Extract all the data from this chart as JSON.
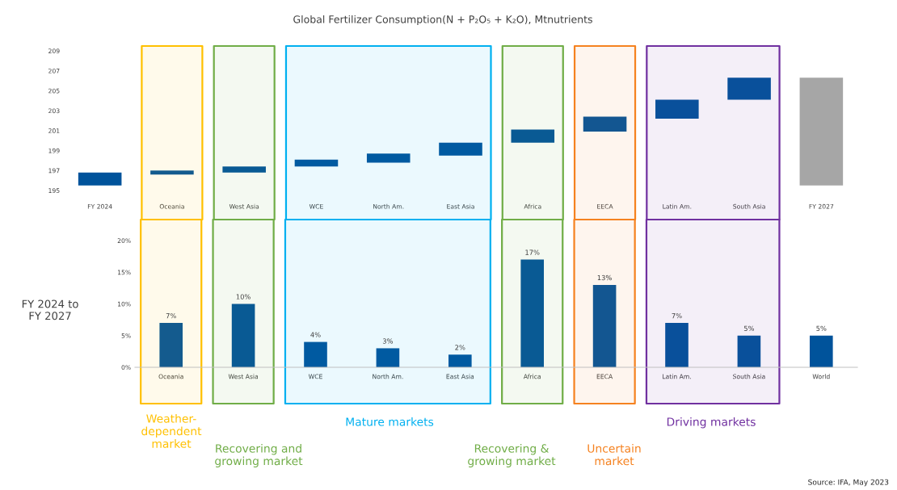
{
  "chart_data": [
    {
      "type": "bar",
      "title": "Global Fertilizer Consumption(N + P₂O₅ + K₂O), Mtnutrients",
      "categories": [
        "FY 2024",
        "Oceania",
        "West Asia",
        "WCE",
        "North Am.",
        "East Asia",
        "Africa",
        "EECA",
        "Latin Am.",
        "South Asia",
        "FY 2027"
      ],
      "base": [
        195.5,
        196.6,
        196.8,
        197.4,
        197.8,
        198.5,
        199.8,
        200.9,
        202.2,
        204.1,
        195.5
      ],
      "values": [
        1.3,
        0.4,
        0.6,
        0.7,
        0.9,
        1.3,
        1.3,
        1.5,
        1.9,
        2.2,
        10.8
      ],
      "colors": [
        "#00539b",
        "#00539b",
        "#00539b",
        "#00539b",
        "#00539b",
        "#00539b",
        "#00539b",
        "#00539b",
        "#00539b",
        "#00539b",
        "#a6a6a6"
      ],
      "ylim": [
        195,
        209
      ],
      "yticks": [
        195,
        197,
        199,
        201,
        203,
        205,
        207,
        209
      ],
      "grid": false,
      "legend": false,
      "bands": [
        {
          "axis": "x",
          "from": "Oceania",
          "to": "Oceania",
          "color": "#ffc000"
        },
        {
          "axis": "x",
          "from": "West Asia",
          "to": "West Asia",
          "color": "#70ad47"
        },
        {
          "axis": "x",
          "from": "WCE",
          "to": "East Asia",
          "color": "#00b0f0"
        },
        {
          "axis": "x",
          "from": "Africa",
          "to": "Africa",
          "color": "#70ad47"
        },
        {
          "axis": "x",
          "from": "EECA",
          "to": "EECA",
          "color": "#f58220"
        },
        {
          "axis": "x",
          "from": "Latin Am.",
          "to": "South Asia",
          "color": "#7030a0"
        }
      ]
    },
    {
      "type": "bar",
      "ylabel": "FY 2024 to\nFY 2027",
      "categories": [
        "Oceania",
        "West Asia",
        "WCE",
        "North Am.",
        "East Asia",
        "Africa",
        "EECA",
        "Latin Am.",
        "South Asia",
        "World"
      ],
      "values": [
        7,
        10,
        4,
        3,
        2,
        17,
        13,
        7,
        5,
        5
      ],
      "value_labels": [
        "7%",
        "10%",
        "4%",
        "3%",
        "2%",
        "17%",
        "13%",
        "7%",
        "5%",
        "5%"
      ],
      "color": "#00539b",
      "ylim": [
        0,
        20
      ],
      "yticks": [
        {
          "value": 0,
          "label": "0%"
        },
        {
          "value": 5,
          "label": "5%"
        },
        {
          "value": 10,
          "label": "10%"
        },
        {
          "value": 15,
          "label": "15%"
        },
        {
          "value": 20,
          "label": "20%"
        }
      ],
      "grid": false,
      "legend": false,
      "bands": [
        {
          "axis": "x",
          "from": "Oceania",
          "to": "Oceania",
          "label": "Weather-\ndependent\nmarket",
          "color": "#ffc000"
        },
        {
          "axis": "x",
          "from": "West Asia",
          "to": "West Asia",
          "label": "Recovering and\ngrowing market",
          "color": "#70ad47"
        },
        {
          "axis": "x",
          "from": "WCE",
          "to": "East Asia",
          "label": "Mature markets",
          "color": "#00b0f0"
        },
        {
          "axis": "x",
          "from": "Africa",
          "to": "Africa",
          "label": "Recovering &\ngrowing market",
          "color": "#70ad47"
        },
        {
          "axis": "x",
          "from": "EECA",
          "to": "EECA",
          "label": "Uncertain\nmarket",
          "color": "#f58220"
        },
        {
          "axis": "x",
          "from": "Latin Am.",
          "to": "South Asia",
          "label": "Driving markets",
          "color": "#7030a0"
        }
      ],
      "annotations": [
        "Source: IFA, May 2023"
      ]
    }
  ]
}
